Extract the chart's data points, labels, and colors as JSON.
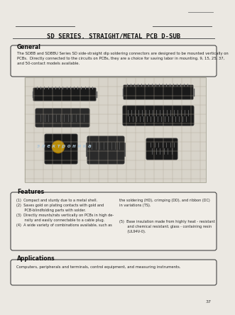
{
  "bg_color": "#ebe8e2",
  "title": "SD SERIES. STRAIGHT/METAL PCB D-SUB",
  "title_fontsize": 6.5,
  "page_number": "37",
  "general_heading": "General",
  "general_text": "The SDBB and SDBBU Series SD side-straight dip soldering connectors are designed to be mounted vertically on\nPCBs.  Directly connected to the circuits on PCBs, they are a choice for saving labor in mounting. 9, 15, 25, 37,\nand 50-contact models available.",
  "general_fontsize": 3.8,
  "features_heading": "Features",
  "features_left": "(1)  Compact and sturdy due to a metal shell.\n(2)  Saves gold on plating contacts with gold and\n       PCB-blindfolding parts with solder.\n(3)  Directly mounts/rats vertically on PCBs in high de-\n       nsity and easily connectable to a cable plug.\n(4)  A wide variety of combinations available, such as",
  "features_right_top": "the soldering (HD), crimping (DD), and ribbon (DC)\nin variations (TS).",
  "features_right_bottom": "(5)  Base insulation made from highly heat - resistant\n       and chemical resistant; glass - containing resin\n       (UL94V-0).",
  "features_fontsize": 3.6,
  "applications_heading": "Applications",
  "applications_text": "Computers, peripherals and terminals, control equipment, and measuring instruments.",
  "applications_fontsize": 3.8,
  "heading_fontsize": 5.5,
  "watermark_color": "#aec6d8",
  "grid_color": "#b0a898",
  "connector_dark": "#1a1a1a",
  "connector_mid": "#2a2a2a"
}
